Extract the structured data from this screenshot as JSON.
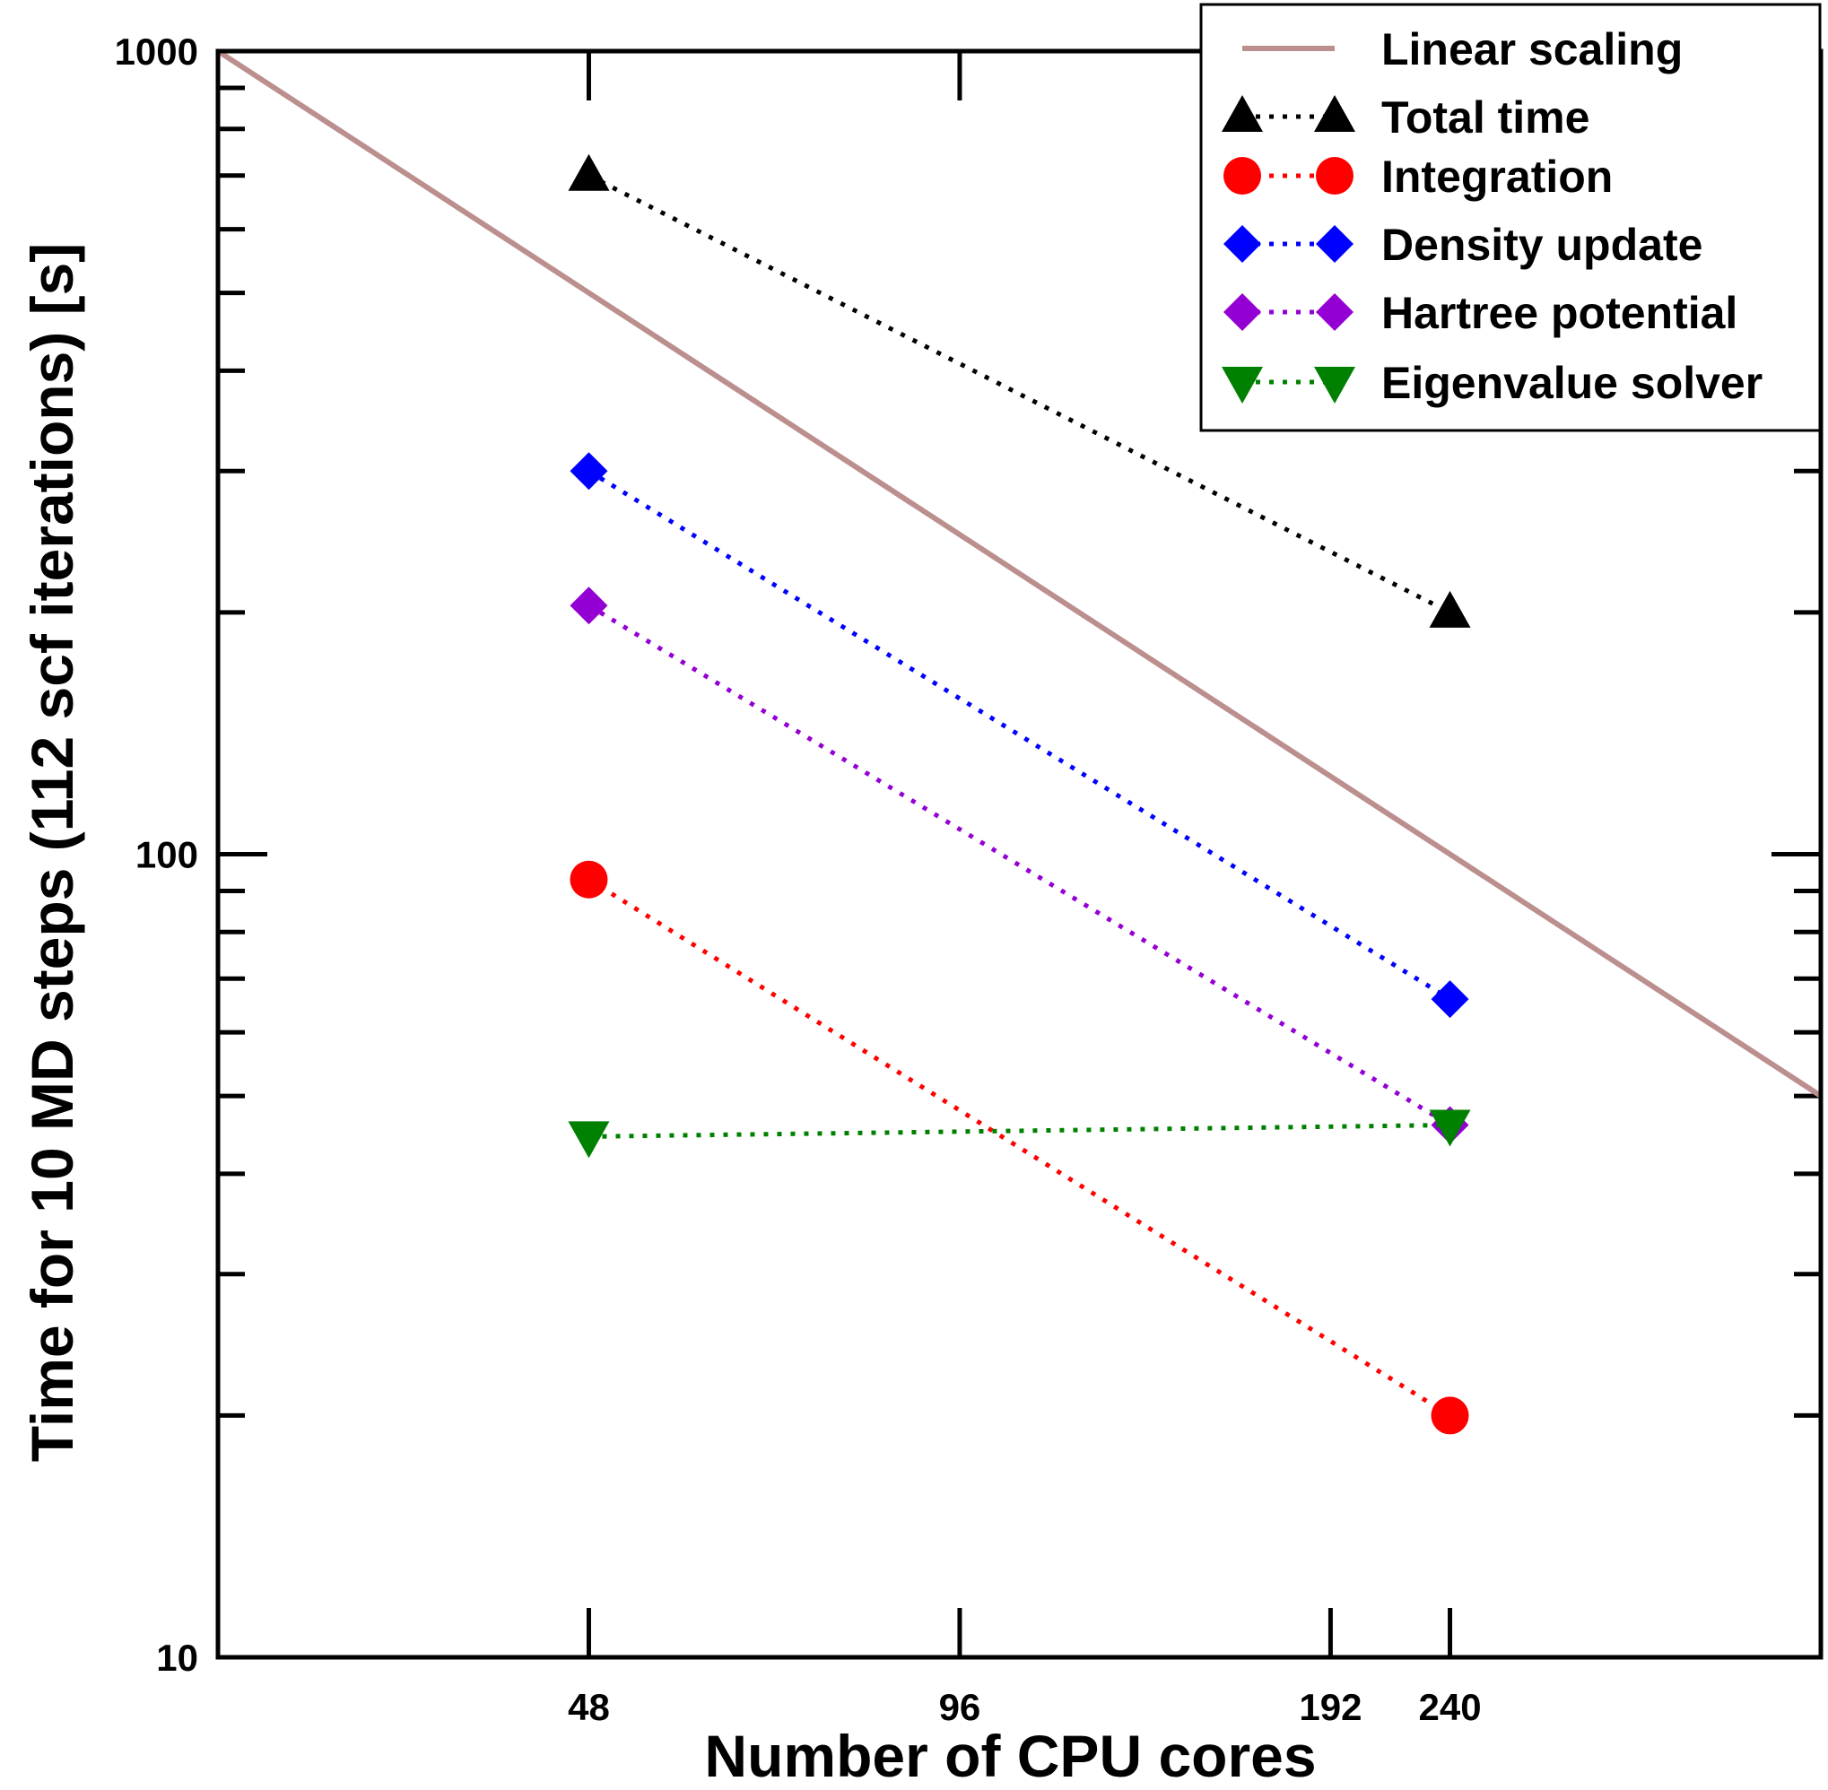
{
  "chart_data": {
    "type": "line",
    "x_scale": "log",
    "y_scale": "log",
    "xlabel": "Number of CPU cores",
    "ylabel": "Time for 10 MD steps (112 scf iterations) [s]",
    "xlim": [
      24,
      480
    ],
    "ylim": [
      10,
      1000
    ],
    "x_ticks": [
      48,
      96,
      192,
      240
    ],
    "x_tick_labels": [
      "48",
      "96",
      "192",
      "240"
    ],
    "y_ticks": [
      10,
      100,
      1000
    ],
    "y_tick_labels": [
      "10",
      "100",
      "1000"
    ],
    "grid": false,
    "legend_position": "top-right",
    "series": [
      {
        "name": "Linear scaling",
        "style": "solid",
        "marker": "none",
        "color": "#bc8f8f",
        "x": [
          24,
          480
        ],
        "y": [
          1000,
          50
        ]
      },
      {
        "name": "Total time",
        "style": "dotted",
        "marker": "triangle-up",
        "color": "#000000",
        "x": [
          48,
          240
        ],
        "y": [
          700,
          200
        ]
      },
      {
        "name": "Integration",
        "style": "dotted",
        "marker": "circle",
        "color": "#ff0000",
        "x": [
          48,
          240
        ],
        "y": [
          93,
          20
        ]
      },
      {
        "name": "Density update",
        "style": "dotted",
        "marker": "diamond",
        "color": "#0000ff",
        "x": [
          48,
          240
        ],
        "y": [
          300,
          66
        ]
      },
      {
        "name": "Hartree potential",
        "style": "dotted",
        "marker": "diamond",
        "color": "#9400d3",
        "x": [
          48,
          240
        ],
        "y": [
          204,
          46
        ]
      },
      {
        "name": "Eigenvalue solver",
        "style": "dotted",
        "marker": "triangle-down",
        "color": "#008000",
        "x": [
          48,
          240
        ],
        "y": [
          44.5,
          46
        ]
      }
    ]
  }
}
